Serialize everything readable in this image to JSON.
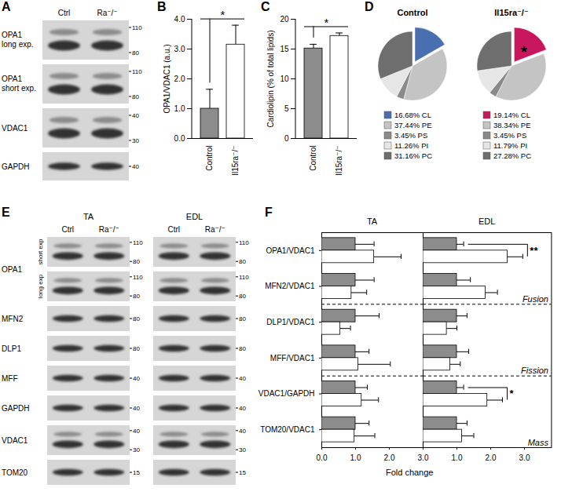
{
  "chart_data": [
    {
      "panel": "B",
      "type": "bar",
      "categories": [
        "Control",
        "Il15ra⁻/⁻"
      ],
      "values": [
        1.0,
        3.15
      ],
      "errors": [
        0.65,
        0.65
      ],
      "colors": [
        "#8c8c8c",
        "#ffffff"
      ],
      "ylabel": "OPA1/VDAC1 (a.u.)",
      "ylim": [
        0,
        4
      ],
      "yticks": [
        0,
        1,
        2,
        3,
        4
      ],
      "annotations": [
        {
          "text": "*",
          "categories": [
            "Control",
            "Il15ra⁻/⁻"
          ]
        }
      ]
    },
    {
      "panel": "C",
      "type": "bar",
      "categories": [
        "Control",
        "Il15ra⁻/⁻"
      ],
      "values": [
        15.1,
        17.2
      ],
      "errors": [
        0.7,
        0.5
      ],
      "colors": [
        "#8c8c8c",
        "#ffffff"
      ],
      "ylabel": "Cardiolipin (% of total lipids)",
      "ylim": [
        0,
        20
      ],
      "yticks": [
        0,
        5,
        10,
        15,
        20
      ],
      "annotations": [
        {
          "text": "*",
          "categories": [
            "Control",
            "Il15ra⁻/⁻"
          ]
        }
      ]
    },
    {
      "panel": "D",
      "type": "pie",
      "pies": [
        {
          "title": "Control",
          "categories": [
            "CL",
            "PE",
            "PS",
            "PI",
            "PC"
          ],
          "values": [
            16.68,
            37.44,
            3.45,
            11.26,
            31.16
          ],
          "value_labels": [
            "16.68%",
            "37.44%",
            "3.45%",
            "11.26%",
            "31.16%"
          ],
          "colors": [
            "#4a6fb0",
            "#c4c4c4",
            "#8a8a8a",
            "#e6e6e6",
            "#6e6e6e"
          ]
        },
        {
          "title": "Il15ra⁻/⁻",
          "categories": [
            "CL",
            "PE",
            "PS",
            "PI",
            "PC"
          ],
          "values": [
            19.14,
            38.34,
            3.45,
            11.79,
            27.28
          ],
          "value_labels": [
            "19.14%",
            "38.34%",
            "3.45%",
            "11.79%",
            "27.28%"
          ],
          "colors": [
            "#c8175d",
            "#c4c4c4",
            "#8a8a8a",
            "#e6e6e6",
            "#6e6e6e"
          ],
          "annotations": [
            {
              "category": "CL",
              "text": "*"
            }
          ]
        }
      ]
    },
    {
      "panel": "F",
      "type": "bar",
      "orientation": "horizontal",
      "xlabel": "Fold change",
      "categories": [
        "OPA1/VDAC1",
        "MFN2/VDAC1",
        "DLP1/VDAC1",
        "MFF/VDAC1",
        "VDAC1/GAPDH",
        "TOM20/VDAC1"
      ],
      "groups": [
        {
          "label": "Fusion",
          "categories": [
            "OPA1/VDAC1",
            "MFN2/VDAC1"
          ]
        },
        {
          "label": "Fission",
          "categories": [
            "DLP1/VDAC1",
            "MFF/VDAC1"
          ]
        },
        {
          "label": "Mass",
          "categories": [
            "VDAC1/GAPDH",
            "TOM20/VDAC1"
          ]
        }
      ],
      "panels": [
        {
          "title": "TA",
          "xlim": [
            0,
            3
          ],
          "xticks": [
            0,
            1,
            2,
            3
          ],
          "series": [
            {
              "color": "#8c8c8c",
              "values": [
                1,
                1,
                1,
                1,
                1,
                1
              ],
              "errors": [
                0.55,
                0.55,
                0.7,
                0.4,
                0.35,
                0.4
              ]
            },
            {
              "color": "#ffffff",
              "values": [
                1.55,
                0.88,
                0.55,
                1.08,
                1.18,
                0.97
              ],
              "errors": [
                0.8,
                0.45,
                0.3,
                0.95,
                0.5,
                0.6
              ]
            }
          ]
        },
        {
          "title": "EDL",
          "xlim": [
            0,
            3.8
          ],
          "xticks": [
            1,
            2,
            3
          ],
          "series": [
            {
              "color": "#8c8c8c",
              "values": [
                1,
                1,
                1,
                1,
                1,
                1
              ],
              "errors": [
                0.2,
                0.4,
                0.3,
                0.35,
                0.2,
                0.3
              ]
            },
            {
              "color": "#ffffff",
              "values": [
                2.5,
                1.85,
                0.7,
                0.8,
                1.9,
                1.15
              ],
              "errors": [
                0.45,
                0.35,
                0.3,
                0.3,
                0.45,
                0.35
              ]
            }
          ],
          "annotations": [
            {
              "category": "OPA1/VDAC1",
              "text": "**"
            },
            {
              "category": "VDAC1/GAPDH",
              "text": "*"
            }
          ]
        }
      ]
    }
  ],
  "blots": [
    {
      "panel": "A",
      "lanes": [
        "Ctrl",
        "Ra⁻/⁻"
      ],
      "rows": [
        {
          "label": "OPA1 long exp.",
          "markers": [
            110,
            80
          ]
        },
        {
          "label": "OPA1 short exp.",
          "markers": [
            110,
            80
          ]
        },
        {
          "label": "VDAC1",
          "markers": [
            40,
            30
          ]
        },
        {
          "label": "GAPDH",
          "markers": [
            40
          ]
        }
      ]
    },
    {
      "panel": "E",
      "groups": [
        {
          "label": "TA",
          "lanes": [
            "Ctrl",
            "Ra⁻/⁻"
          ]
        },
        {
          "label": "EDL",
          "lanes": [
            "Ctrl",
            "Ra⁻/⁻"
          ]
        }
      ],
      "rows": [
        {
          "label": "OPA1",
          "sub_rows": [
            {
              "label": "short exp",
              "markers": [
                110,
                80
              ]
            },
            {
              "label": "long exp",
              "markers": [
                110,
                80
              ]
            }
          ]
        },
        {
          "label": "MFN2",
          "markers": [
            80
          ]
        },
        {
          "label": "DLP1",
          "markers": [
            80
          ]
        },
        {
          "label": "MFF",
          "markers": [
            40
          ]
        },
        {
          "label": "GAPDH",
          "markers": [
            40
          ]
        },
        {
          "label": "VDAC1",
          "markers": [
            40,
            30
          ]
        },
        {
          "label": "TOM20",
          "markers": [
            15
          ]
        }
      ]
    }
  ]
}
